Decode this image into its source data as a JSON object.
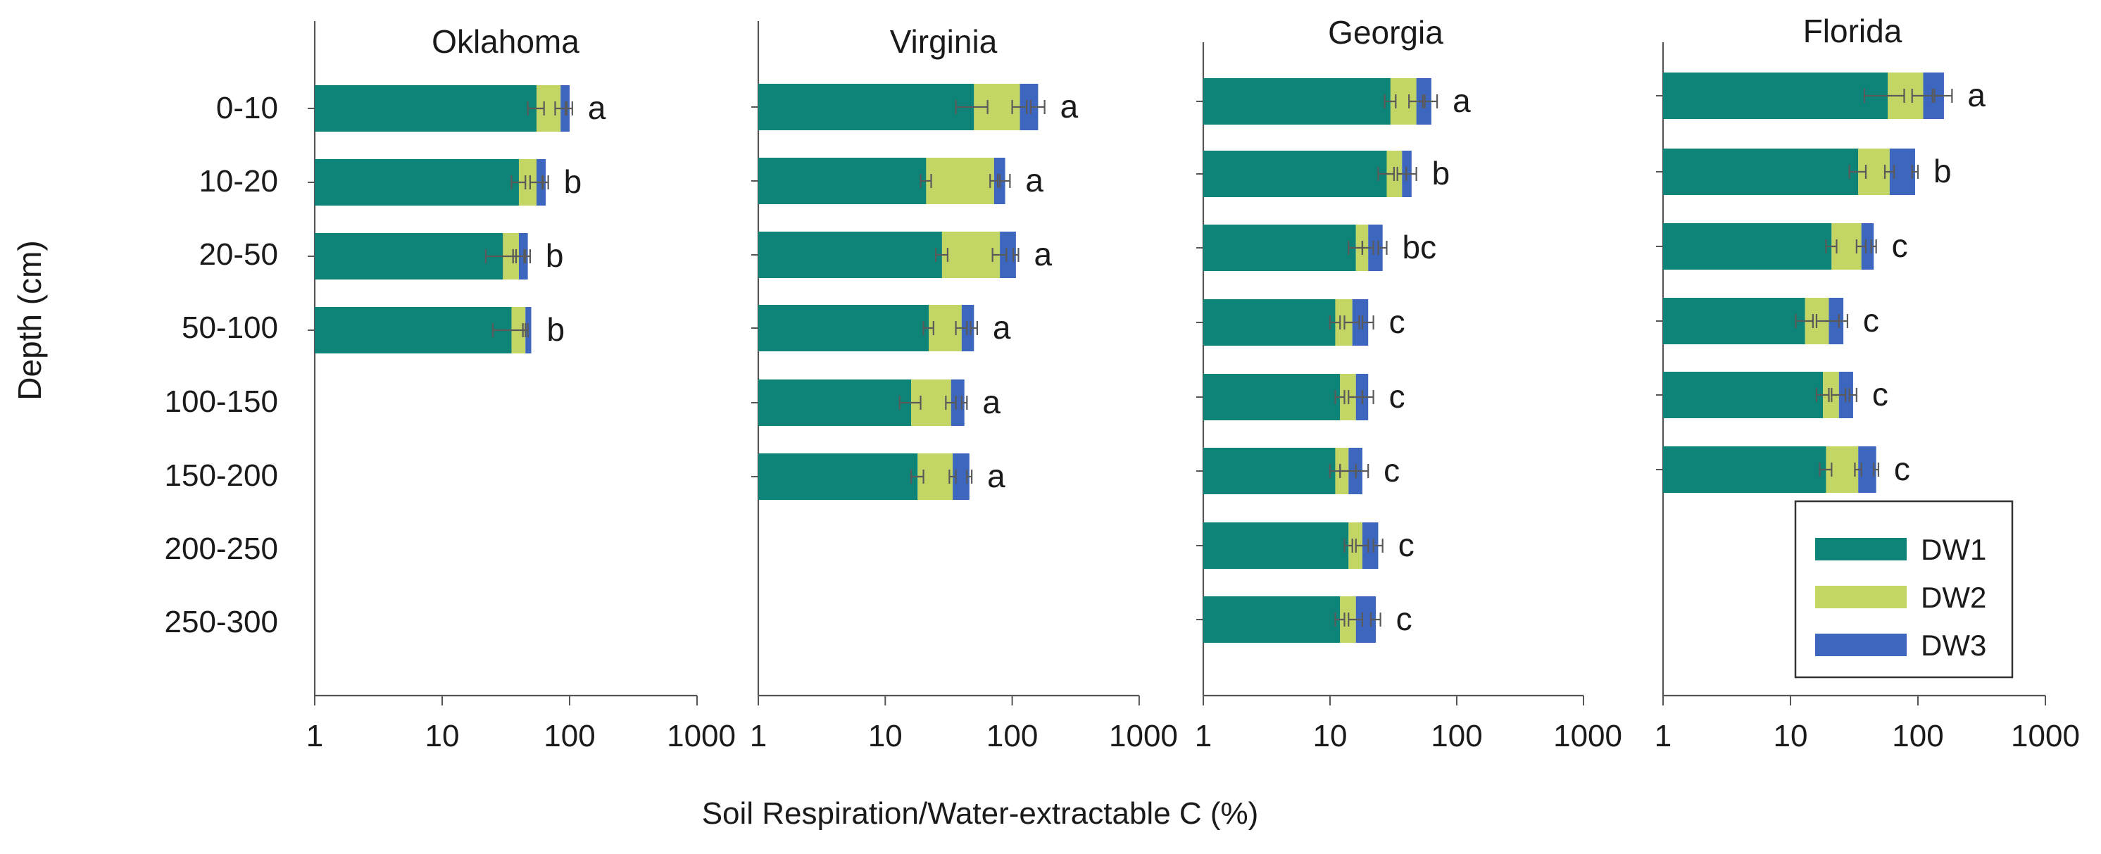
{
  "chart_data": {
    "type": "bar",
    "orientation": "horizontal",
    "stacked": true,
    "xscale": "log",
    "xlim": [
      1,
      1000
    ],
    "xticks": [
      "1",
      "10",
      "100",
      "1000"
    ],
    "xlabel": "Soil Respiration/Water-extractable C (%)",
    "ylabel": "Depth (cm)",
    "depth_labels": [
      "0-10",
      "10-20",
      "20-50",
      "50-100",
      "100-150",
      "150-200",
      "200-250",
      "250-300"
    ],
    "legend": [
      {
        "name": "DW1",
        "color": "#0e8478"
      },
      {
        "name": "DW2",
        "color": "#c3d564"
      },
      {
        "name": "DW3",
        "color": "#3d67be"
      }
    ],
    "panels": [
      {
        "title": "Oklahoma",
        "categories": [
          "0-10",
          "10-20",
          "20-50",
          "50-100"
        ],
        "cum_dw1": [
          55,
          40,
          30,
          35
        ],
        "cum_dw2": [
          85,
          55,
          40,
          45
        ],
        "cum_dw3": [
          100,
          65,
          47,
          50
        ],
        "err_dw1": [
          8,
          5,
          8,
          10
        ],
        "err_dw2": [
          8,
          6,
          4,
          2
        ],
        "err_dw3": [
          5,
          3,
          2,
          0
        ],
        "letters": [
          "a",
          "b",
          "b",
          "b"
        ]
      },
      {
        "title": "Virginia",
        "categories": [
          "0-10",
          "10-20",
          "20-50",
          "50-100",
          "100-150",
          "150-200"
        ],
        "cum_dw1": [
          50,
          21,
          28,
          22,
          16,
          18
        ],
        "cum_dw2": [
          115,
          72,
          80,
          40,
          33,
          34
        ],
        "cum_dw3": [
          160,
          88,
          107,
          50,
          42,
          46
        ],
        "err_dw1": [
          14,
          2,
          3,
          2,
          3,
          2
        ],
        "err_dw2": [
          15,
          5,
          10,
          4,
          3,
          2
        ],
        "err_dw3": [
          20,
          8,
          5,
          3,
          2,
          2
        ],
        "letters": [
          "a",
          "a",
          "a",
          "a",
          "a",
          "a"
        ]
      },
      {
        "title": "Georgia",
        "categories": [
          "0-10",
          "10-20",
          "20-50",
          "50-100",
          "100-150",
          "150-200",
          "200-250",
          "250-300"
        ],
        "cum_dw1": [
          30,
          28,
          16,
          11,
          12,
          11,
          14,
          12
        ],
        "cum_dw2": [
          48,
          37,
          20,
          15,
          16,
          14,
          18,
          16
        ],
        "cum_dw3": [
          63,
          44,
          26,
          20,
          20,
          18,
          24,
          23
        ],
        "err_dw1": [
          3,
          4,
          2,
          1,
          1,
          1,
          1,
          1
        ],
        "err_dw2": [
          6,
          3,
          2,
          2,
          2,
          2,
          2,
          2
        ],
        "err_dw3": [
          7,
          4,
          2,
          2,
          2,
          2,
          2,
          2
        ],
        "letters": [
          "a",
          "b",
          "bc",
          "c",
          "c",
          "c",
          "c",
          "c"
        ]
      },
      {
        "title": "Florida",
        "categories": [
          "0-10",
          "10-20",
          "20-50",
          "50-100",
          "100-150",
          "150-200"
        ],
        "cum_dw1": [
          58,
          34,
          21,
          13,
          18,
          19
        ],
        "cum_dw2": [
          110,
          60,
          36,
          20,
          24,
          34
        ],
        "cum_dw3": [
          160,
          95,
          45,
          26,
          31,
          47
        ],
        "err_dw1": [
          20,
          5,
          2,
          2,
          2,
          2
        ],
        "err_dw2": [
          20,
          5,
          3,
          4,
          3,
          2
        ],
        "err_dw3": [
          25,
          5,
          2,
          2,
          2,
          2
        ],
        "letters": [
          "a",
          "b",
          "c",
          "c",
          "c",
          "c"
        ]
      }
    ]
  }
}
